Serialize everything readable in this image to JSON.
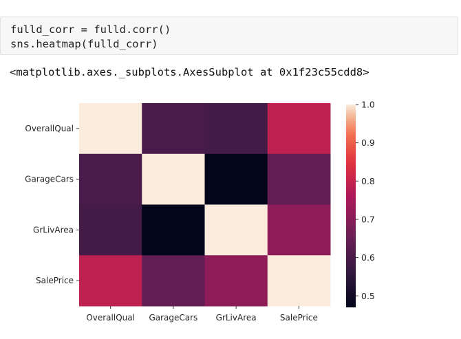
{
  "cell": {
    "code_lines": [
      "fulld_corr = fulld.corr()",
      "sns.heatmap(fulld_corr)"
    ],
    "output_text": "<matplotlib.axes._subplots.AxesSubplot at 0x1f23c55cdd8>"
  },
  "chart_data": {
    "type": "heatmap",
    "categories": [
      "OverallQual",
      "GarageCars",
      "GrLivArea",
      "SalePrice"
    ],
    "rows": [
      "OverallQual",
      "GarageCars",
      "GrLivArea",
      "SalePrice"
    ],
    "values": [
      [
        1.0,
        0.6,
        0.59,
        0.79
      ],
      [
        0.6,
        1.0,
        0.47,
        0.64
      ],
      [
        0.59,
        0.47,
        1.0,
        0.71
      ],
      [
        0.79,
        0.64,
        0.71,
        1.0
      ]
    ],
    "colorbar": {
      "min": 0.47,
      "max": 1.0,
      "ticks": [
        0.5,
        0.6,
        0.7,
        0.8,
        0.9,
        1.0
      ]
    },
    "colormap": "rocket",
    "title": "",
    "xlabel": "",
    "ylabel": ""
  }
}
